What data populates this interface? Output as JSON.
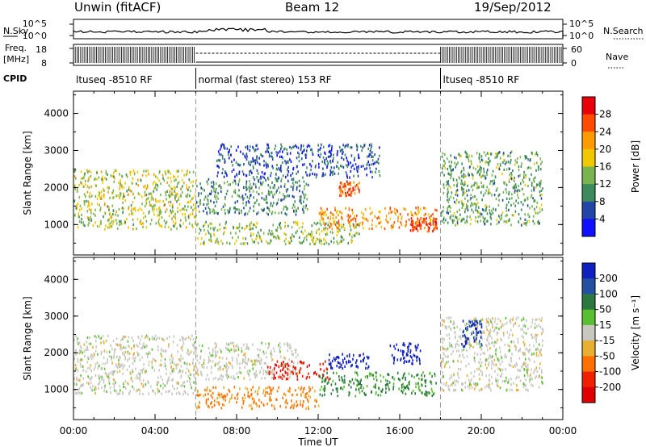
{
  "header": {
    "title": "Unwin (fitACF)",
    "beam": "Beam 12",
    "date": "19/Sep/2012"
  },
  "strip": {
    "nsky_label": "N.Sky",
    "nsearch_label": "N.Search",
    "count_ticks": [
      "10^5",
      "10^0"
    ],
    "freq_label_line1": "Freq.",
    "freq_label_line2": "[MHz]",
    "freq_ticks": [
      "18",
      "8"
    ],
    "nave_label": "Nave",
    "nave_ticks": [
      "60",
      "0"
    ],
    "cpid_label": "CPID",
    "cpid_segments": [
      {
        "label": "ltuseq -8510 RF",
        "start_hour": 0,
        "end_hour": 6
      },
      {
        "label": "normal (fast stereo) 153 RF",
        "start_hour": 6,
        "end_hour": 18
      },
      {
        "label": "ltuseq -8510 RF",
        "start_hour": 18,
        "end_hour": 24
      }
    ]
  },
  "power_colorbar": {
    "label": "Power [dB]",
    "ticks": [
      "28",
      "24",
      "20",
      "16",
      "12",
      "8",
      "4"
    ],
    "colors": [
      "#e8000b",
      "#ff4b00",
      "#ff9b00",
      "#f0c800",
      "#7ab350",
      "#3d8a5c",
      "#2146a8",
      "#1010ff"
    ]
  },
  "velocity_colorbar": {
    "label": "Velocity [m s⁻¹]",
    "ticks": [
      "200",
      "100",
      "50",
      "15",
      "-15",
      "-50",
      "-100",
      "-200"
    ],
    "colors": [
      "#1020c0",
      "#2450a0",
      "#2c7840",
      "#58c030",
      "#c8c8c0",
      "#e8b030",
      "#ff7000",
      "#f02000",
      "#e00000"
    ]
  },
  "chart_data": [
    {
      "type": "heatmap",
      "panel": "power",
      "title": "",
      "xlabel": "Time UT",
      "ylabel": "Slant Range [km]",
      "x_ticks": [
        "00:00",
        "04:00",
        "08:00",
        "12:00",
        "16:00",
        "20:00",
        "00:00"
      ],
      "y_ticks": [
        "1000",
        "2000",
        "3000",
        "4000"
      ],
      "xlim_hours": [
        0,
        24
      ],
      "ylim_km": [
        180,
        4600
      ],
      "colorbar": "Power [dB]",
      "regions": [
        {
          "t_start": 0.0,
          "t_end": 6.0,
          "r_min": 900,
          "r_max": 2500,
          "value_db": 16
        },
        {
          "t_start": 6.0,
          "t_end": 14.0,
          "r_min": 500,
          "r_max": 1100,
          "value_db": 14
        },
        {
          "t_start": 6.0,
          "t_end": 11.5,
          "r_min": 1300,
          "r_max": 2300,
          "value_db": 10
        },
        {
          "t_start": 7.0,
          "t_end": 15.0,
          "r_min": 2300,
          "r_max": 3200,
          "value_db": 6
        },
        {
          "t_start": 12.0,
          "t_end": 17.8,
          "r_min": 900,
          "r_max": 1500,
          "value_db": 22
        },
        {
          "t_start": 16.5,
          "t_end": 17.8,
          "r_min": 850,
          "r_max": 1200,
          "value_db": 28
        },
        {
          "t_start": 13.0,
          "t_end": 14.0,
          "r_min": 1800,
          "r_max": 2200,
          "value_db": 26
        },
        {
          "t_start": 18.0,
          "t_end": 23.0,
          "r_min": 1000,
          "r_max": 3000,
          "value_db": 12
        }
      ]
    },
    {
      "type": "heatmap",
      "panel": "velocity",
      "title": "",
      "xlabel": "Time UT",
      "ylabel": "Slant Range [km]",
      "x_ticks": [
        "00:00",
        "04:00",
        "08:00",
        "12:00",
        "16:00",
        "20:00",
        "00:00"
      ],
      "y_ticks": [
        "1000",
        "2000",
        "3000",
        "4000"
      ],
      "xlim_hours": [
        0,
        24
      ],
      "ylim_km": [
        180,
        4600
      ],
      "colorbar": "Velocity [m s⁻¹]",
      "regions": [
        {
          "t_start": 0.0,
          "t_end": 6.0,
          "r_min": 900,
          "r_max": 2500,
          "value_ms": 0
        },
        {
          "t_start": 6.0,
          "t_end": 12.0,
          "r_min": 500,
          "r_max": 1100,
          "value_ms": -40
        },
        {
          "t_start": 6.0,
          "t_end": 11.0,
          "r_min": 1300,
          "r_max": 2300,
          "value_ms": 0
        },
        {
          "t_start": 9.5,
          "t_end": 12.5,
          "r_min": 1300,
          "r_max": 1800,
          "value_ms": -150
        },
        {
          "t_start": 12.5,
          "t_end": 14.5,
          "r_min": 1600,
          "r_max": 2000,
          "value_ms": 200
        },
        {
          "t_start": 15.5,
          "t_end": 17.0,
          "r_min": 1700,
          "r_max": 2300,
          "value_ms": 200
        },
        {
          "t_start": 12.0,
          "t_end": 17.8,
          "r_min": 850,
          "r_max": 1500,
          "value_ms": 40
        },
        {
          "t_start": 18.0,
          "t_end": 23.0,
          "r_min": 1000,
          "r_max": 3000,
          "value_ms": 0
        },
        {
          "t_start": 19.0,
          "t_end": 20.0,
          "r_min": 2200,
          "r_max": 2900,
          "value_ms": 150
        }
      ]
    }
  ]
}
